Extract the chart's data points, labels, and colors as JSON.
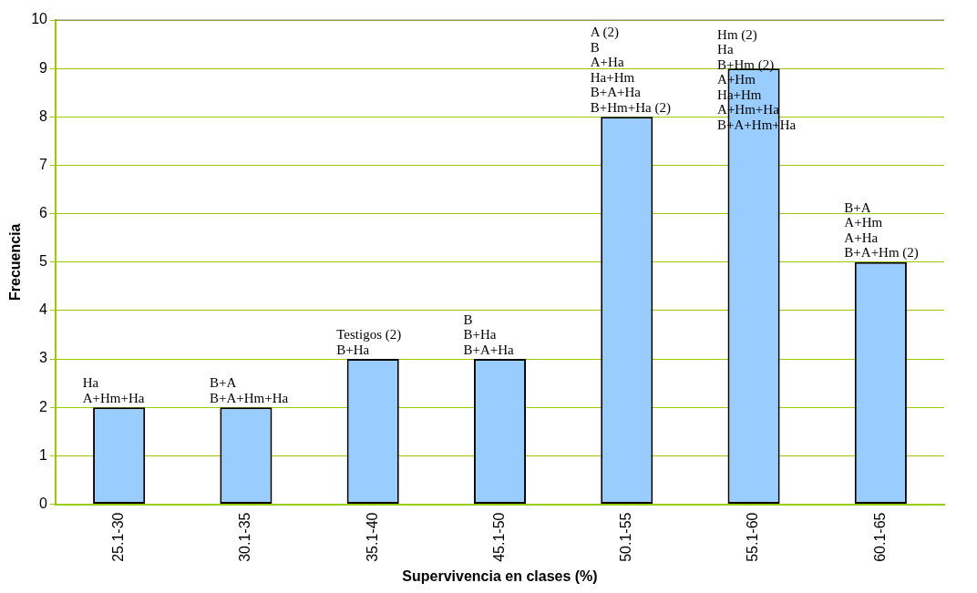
{
  "chart_data": {
    "type": "bar",
    "xlabel": "Supervivencia en clases (%)",
    "ylabel": "Frecuencia",
    "categories": [
      "25.1-30",
      "30.1-35",
      "35.1-40",
      "45.1-50",
      "50.1-55",
      "55.1-60",
      "60.1-65"
    ],
    "values": [
      2,
      2,
      3,
      3,
      8,
      9,
      5
    ],
    "color": "#99ccff",
    "ylim": [
      0,
      10
    ],
    "yticks": [
      0,
      1,
      2,
      3,
      4,
      5,
      6,
      7,
      8,
      9,
      10
    ],
    "grid": "y",
    "legend": false,
    "annotations": [
      {
        "text": "Ha\nA+Hm+Ha",
        "x": "25.1-30",
        "y": 2
      },
      {
        "text": "B+A\nB+A+Hm+Ha",
        "x": "30.1-35",
        "y": 2
      },
      {
        "text": "Testigos (2)\nB+Ha",
        "x": "35.1-40",
        "y": 3
      },
      {
        "text": "B\nB+Ha\nB+A+Ha",
        "x": "45.1-50",
        "y": 3
      },
      {
        "text": "A (2)\nB\nA+Ha\nHa+Hm\nB+A+Ha\nB+Hm+Ha (2)",
        "x": "50.1-55",
        "y": 8
      },
      {
        "text": "Hm (2)\nHa\nB+Hm (2)\nA+Hm\nHa+Hm\nA+Hm+Ha\nB+A+Hm+Ha",
        "x": "55.1-60",
        "y": 9
      },
      {
        "text": "B+A\nA+Hm\nA+Ha\nB+A+Hm (2)",
        "x": "60.1-65",
        "y": 5
      }
    ]
  }
}
